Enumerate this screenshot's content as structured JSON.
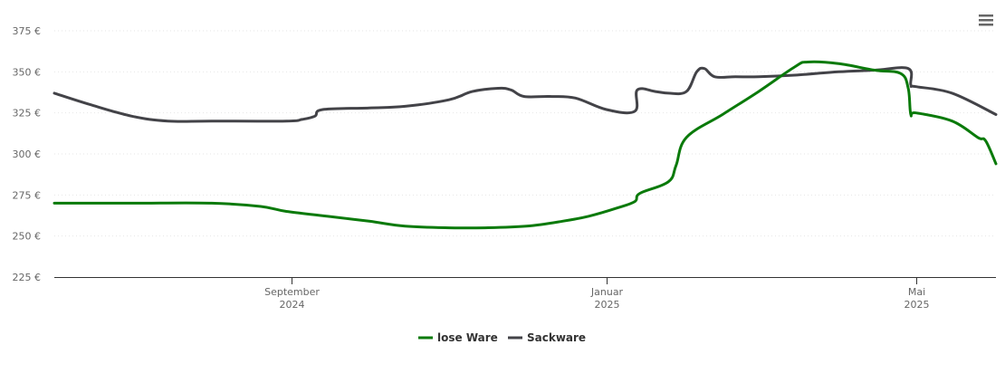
{
  "chart_data": {
    "type": "line",
    "title": "",
    "xlabel": "",
    "ylabel": "",
    "ylim": [
      225,
      375
    ],
    "xlim": [
      "2024-06-01",
      "2025-06-01"
    ],
    "y_ticks": [
      225,
      250,
      275,
      300,
      325,
      350,
      375
    ],
    "y_tick_labels": [
      "225 €",
      "250 €",
      "275 €",
      "300 €",
      "325 €",
      "350 €",
      "375 €"
    ],
    "x_ticks": [
      {
        "date": "2024-09-01",
        "month": "September",
        "year": "2024"
      },
      {
        "date": "2025-01-01",
        "month": "Januar",
        "year": "2025"
      },
      {
        "date": "2025-05-01",
        "month": "Mai",
        "year": "2025"
      }
    ],
    "grid": true,
    "legend_position": "bottom-center",
    "series": [
      {
        "name": "lose Ware",
        "color": "#0a7a0a",
        "points": [
          [
            "2024-06-01",
            270
          ],
          [
            "2024-07-01",
            270
          ],
          [
            "2024-08-01",
            270
          ],
          [
            "2024-08-20",
            268
          ],
          [
            "2024-08-30",
            265
          ],
          [
            "2024-09-15",
            262
          ],
          [
            "2024-10-01",
            259
          ],
          [
            "2024-10-15",
            256
          ],
          [
            "2024-11-01",
            255
          ],
          [
            "2024-11-15",
            255
          ],
          [
            "2024-12-01",
            256
          ],
          [
            "2024-12-15",
            259
          ],
          [
            "2024-12-25",
            262
          ],
          [
            "2025-01-05",
            267
          ],
          [
            "2025-01-12",
            271
          ],
          [
            "2025-01-14",
            276
          ],
          [
            "2025-01-25",
            283
          ],
          [
            "2025-01-28",
            293
          ],
          [
            "2025-02-01",
            310
          ],
          [
            "2025-02-15",
            324
          ],
          [
            "2025-03-01",
            338
          ],
          [
            "2025-03-15",
            353
          ],
          [
            "2025-03-20",
            356
          ],
          [
            "2025-04-01",
            355
          ],
          [
            "2025-04-15",
            351
          ],
          [
            "2025-04-25",
            349
          ],
          [
            "2025-04-28",
            340
          ],
          [
            "2025-04-29",
            324
          ],
          [
            "2025-05-01",
            325
          ],
          [
            "2025-05-15",
            320
          ],
          [
            "2025-05-25",
            310
          ],
          [
            "2025-05-28",
            308
          ],
          [
            "2025-06-01",
            294
          ]
        ]
      },
      {
        "name": "Sackware",
        "color": "#434348",
        "points": [
          [
            "2024-06-01",
            337
          ],
          [
            "2024-06-15",
            330
          ],
          [
            "2024-07-01",
            323
          ],
          [
            "2024-07-15",
            320
          ],
          [
            "2024-08-01",
            320
          ],
          [
            "2024-08-30",
            320
          ],
          [
            "2024-09-05",
            321
          ],
          [
            "2024-09-10",
            323
          ],
          [
            "2024-09-13",
            327
          ],
          [
            "2024-10-01",
            328
          ],
          [
            "2024-10-15",
            329
          ],
          [
            "2024-11-01",
            333
          ],
          [
            "2024-11-10",
            338
          ],
          [
            "2024-11-20",
            340
          ],
          [
            "2024-11-25",
            339
          ],
          [
            "2024-11-30",
            335
          ],
          [
            "2024-12-10",
            335
          ],
          [
            "2024-12-20",
            334
          ],
          [
            "2025-01-01",
            327
          ],
          [
            "2025-01-12",
            326
          ],
          [
            "2025-01-13",
            339
          ],
          [
            "2025-01-20",
            338
          ],
          [
            "2025-01-25",
            337
          ],
          [
            "2025-02-01",
            338
          ],
          [
            "2025-02-05",
            350
          ],
          [
            "2025-02-08",
            352
          ],
          [
            "2025-02-12",
            347
          ],
          [
            "2025-02-20",
            347
          ],
          [
            "2025-03-01",
            347
          ],
          [
            "2025-03-15",
            348
          ],
          [
            "2025-04-01",
            350
          ],
          [
            "2025-04-15",
            351
          ],
          [
            "2025-04-28",
            352
          ],
          [
            "2025-04-29",
            342
          ],
          [
            "2025-05-01",
            341
          ],
          [
            "2025-05-15",
            337
          ],
          [
            "2025-06-01",
            324
          ]
        ]
      }
    ]
  },
  "menu": {
    "icon": "hamburger-menu-icon"
  }
}
